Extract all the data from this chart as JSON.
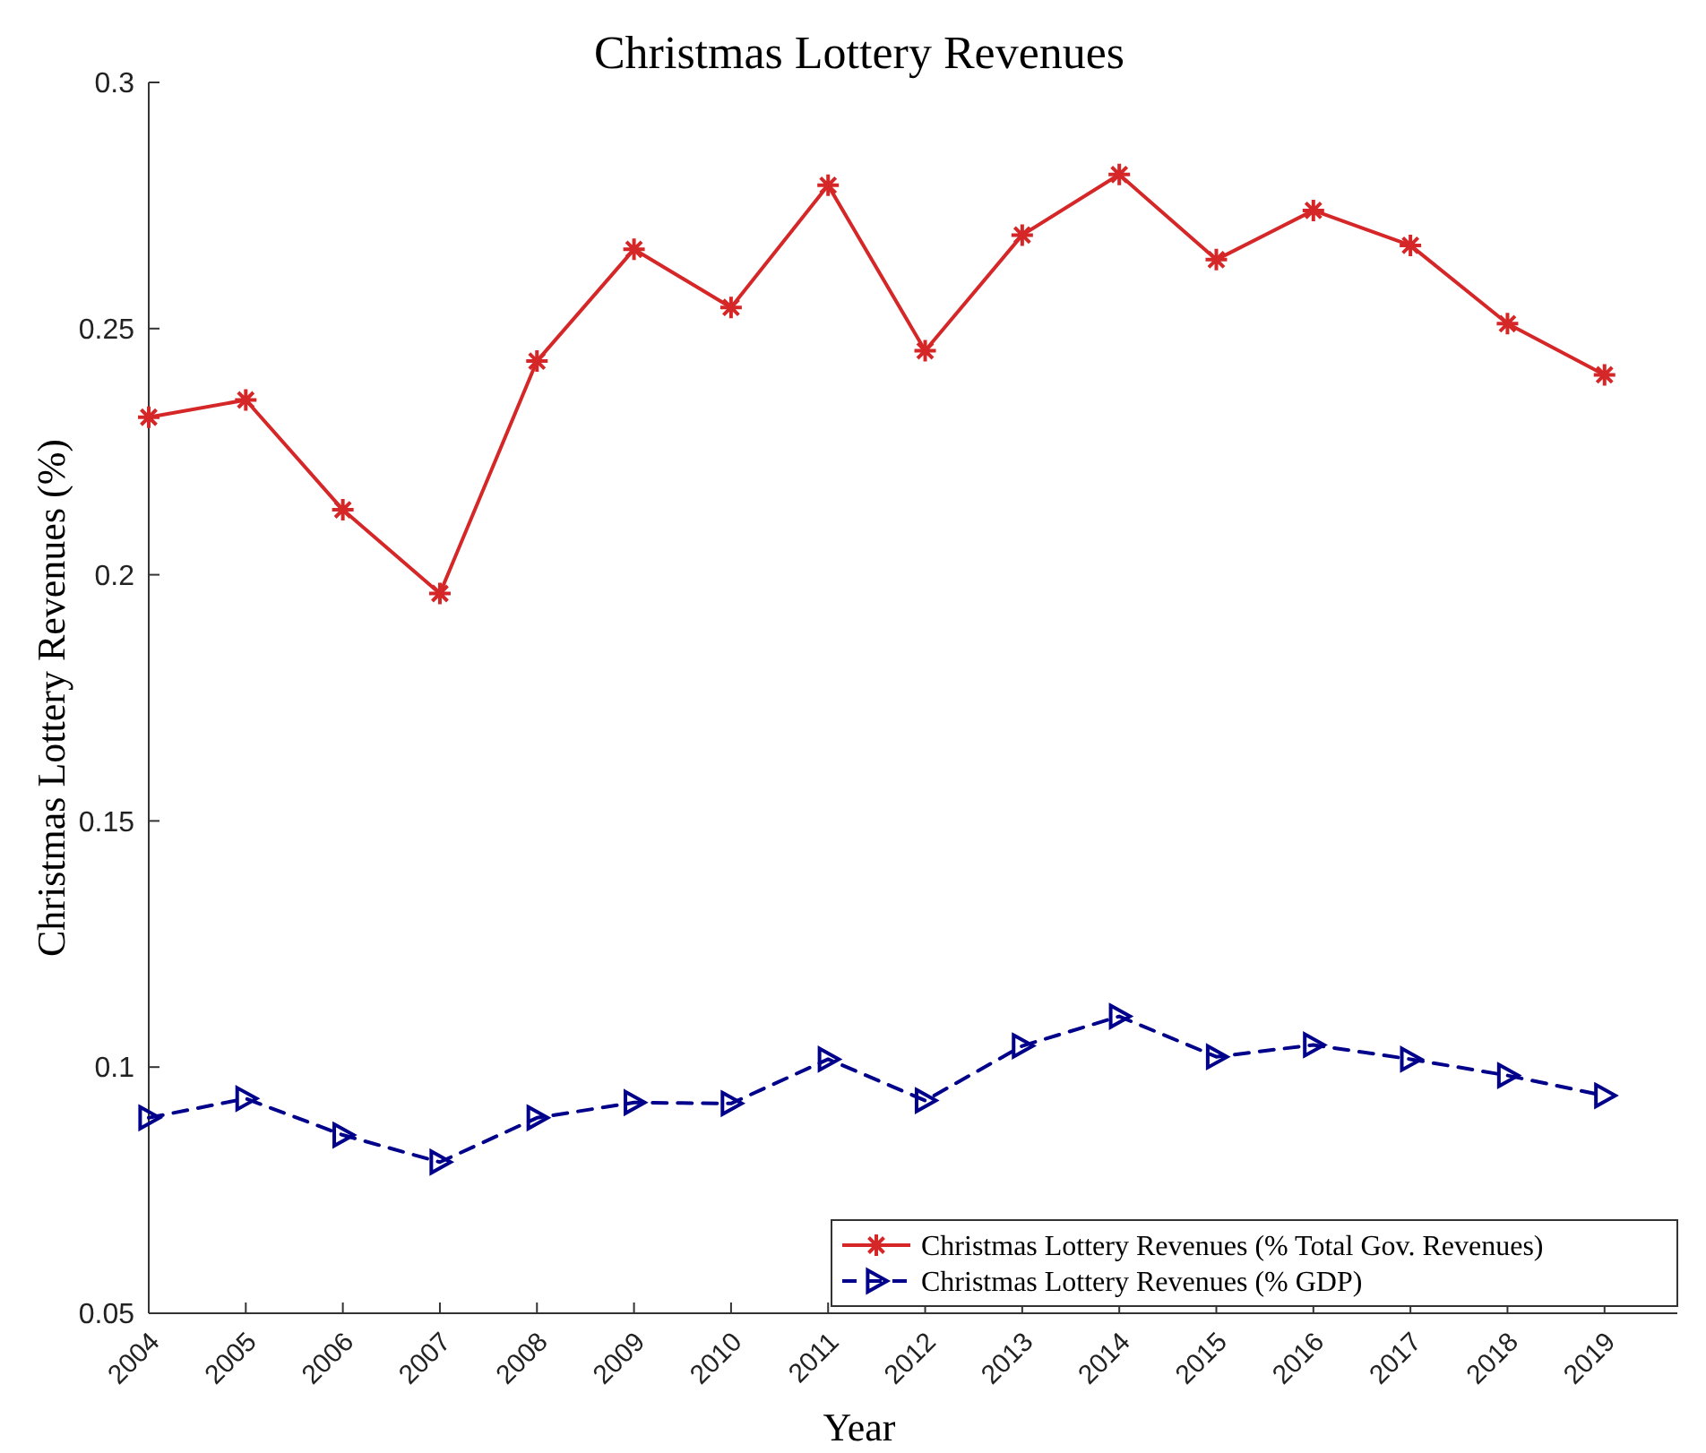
{
  "chart_data": {
    "type": "line",
    "title": "Christmas Lottery Revenues",
    "xlabel": "Year",
    "ylabel": "Christmas Lottery Revenues (%)",
    "x": [
      2004,
      2005,
      2006,
      2007,
      2008,
      2009,
      2010,
      2011,
      2012,
      2013,
      2014,
      2015,
      2016,
      2017,
      2018,
      2019
    ],
    "series": [
      {
        "name": "Christmas Lottery Revenues (% Total Gov. Revenues)",
        "color": "#d62728",
        "marker": "cross",
        "line_style": "solid",
        "values": [
          0.232,
          0.2355,
          0.2132,
          0.1962,
          0.2434,
          0.2661,
          0.2543,
          0.2791,
          0.2455,
          0.269,
          0.2813,
          0.264,
          0.274,
          0.2669,
          0.251,
          0.2406
        ]
      },
      {
        "name": "Christmas Lottery Revenues (% GDP)",
        "color": "#00008b",
        "marker": "triangle",
        "line_style": "dashed",
        "values": [
          0.0897,
          0.0936,
          0.0862,
          0.0807,
          0.0897,
          0.0928,
          0.0926,
          0.1016,
          0.0932,
          0.1043,
          0.1103,
          0.1021,
          0.1045,
          0.1016,
          0.0983,
          0.0942
        ]
      }
    ],
    "xlim": [
      2004,
      2019.75
    ],
    "xticks": [
      2004,
      2005,
      2006,
      2007,
      2008,
      2009,
      2010,
      2011,
      2012,
      2013,
      2014,
      2015,
      2016,
      2017,
      2018,
      2019
    ],
    "ylim": [
      0.05,
      0.3
    ],
    "yticks": [
      0.05,
      0.1,
      0.15,
      0.2,
      0.25,
      0.3
    ],
    "grid": false,
    "legend": "bottom right"
  }
}
